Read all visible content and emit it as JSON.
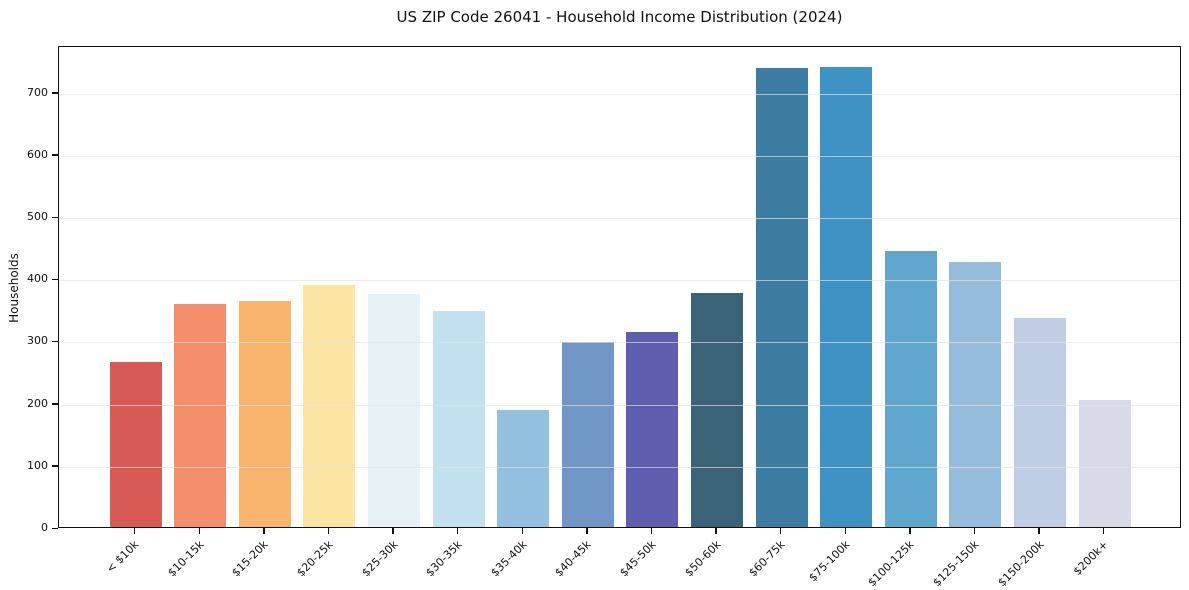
{
  "figure": {
    "background": "#ffffff",
    "spine_color": "#111111",
    "gridline_color": "#e1e4e6"
  },
  "chart_data": {
    "type": "bar",
    "title": "US ZIP Code 26041 - Household Income Distribution (2024)",
    "xlabel": "",
    "ylabel": "Households",
    "categories": [
      "< $10k",
      "$10-15k",
      "$15-20k",
      "$20-25k",
      "$25-30k",
      "$30-35k",
      "$35-40k",
      "$40-45k",
      "$45-50k",
      "$50-60k",
      "$60-75k",
      "$75-100k",
      "$100-125k",
      "$125-150k",
      "$150-200k",
      "$200k+"
    ],
    "values": [
      265,
      358,
      363,
      389,
      375,
      347,
      188,
      298,
      314,
      376,
      738,
      740,
      444,
      426,
      336,
      204
    ],
    "colors": [
      "#d6554f",
      "#f58a66",
      "#f9b269",
      "#fde5a0",
      "#e6f2f7",
      "#bfe1ed",
      "#90bedd",
      "#6b93c4",
      "#5a58aa",
      "#345e74",
      "#36789e",
      "#388fc0",
      "#5ba4cc",
      "#93bada",
      "#bdcce4",
      "#d8d9e8"
    ],
    "ylim": [
      0,
      775
    ],
    "yticks": [
      0,
      100,
      200,
      300,
      400,
      500,
      600,
      700
    ],
    "grid": "horizontal-light",
    "legend_position": "none"
  }
}
